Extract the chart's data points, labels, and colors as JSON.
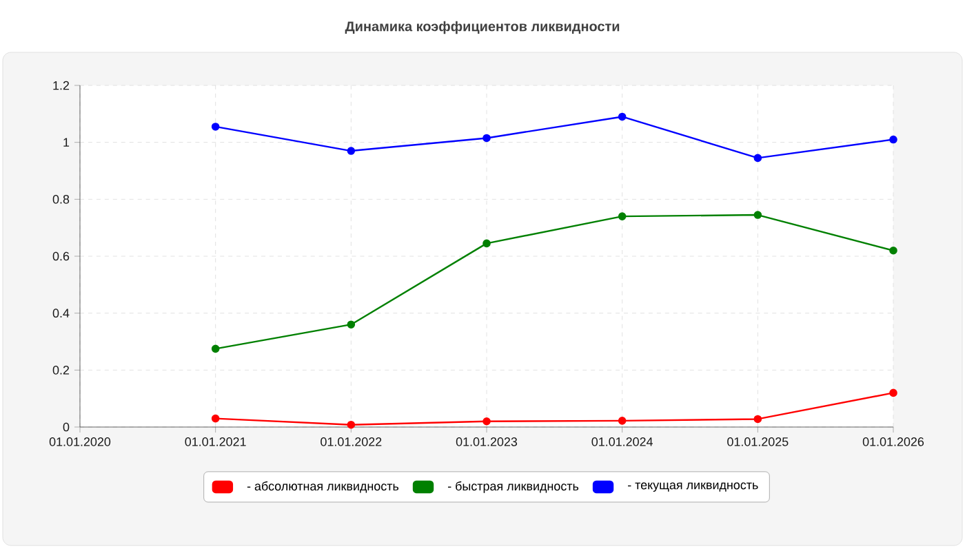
{
  "chart_data": {
    "type": "line",
    "title": "Динамика коэффициентов ликвидности",
    "categories": [
      "01.01.2020",
      "01.01.2021",
      "01.01.2022",
      "01.01.2023",
      "01.01.2024",
      "01.01.2025",
      "01.01.2026"
    ],
    "series": [
      {
        "name": "- абсолютная ликвидность",
        "color": "#ff0000",
        "values": [
          null,
          0.03,
          0.008,
          0.02,
          0.022,
          0.028,
          0.12
        ]
      },
      {
        "name": "- быстрая ликвидность",
        "color": "#008000",
        "values": [
          null,
          0.275,
          0.36,
          0.645,
          0.74,
          0.745,
          0.62
        ]
      },
      {
        "name": "- текущая ликвидность",
        "color": "#0000ff",
        "values": [
          null,
          1.055,
          0.97,
          1.015,
          1.09,
          0.945,
          1.01
        ]
      }
    ],
    "ylim": [
      0,
      1.2
    ],
    "yticks": [
      0,
      0.2,
      0.4,
      0.6,
      0.8,
      1,
      1.2
    ],
    "grid": true,
    "legend": "bottom",
    "marker": "circle",
    "line_style": "solid"
  }
}
